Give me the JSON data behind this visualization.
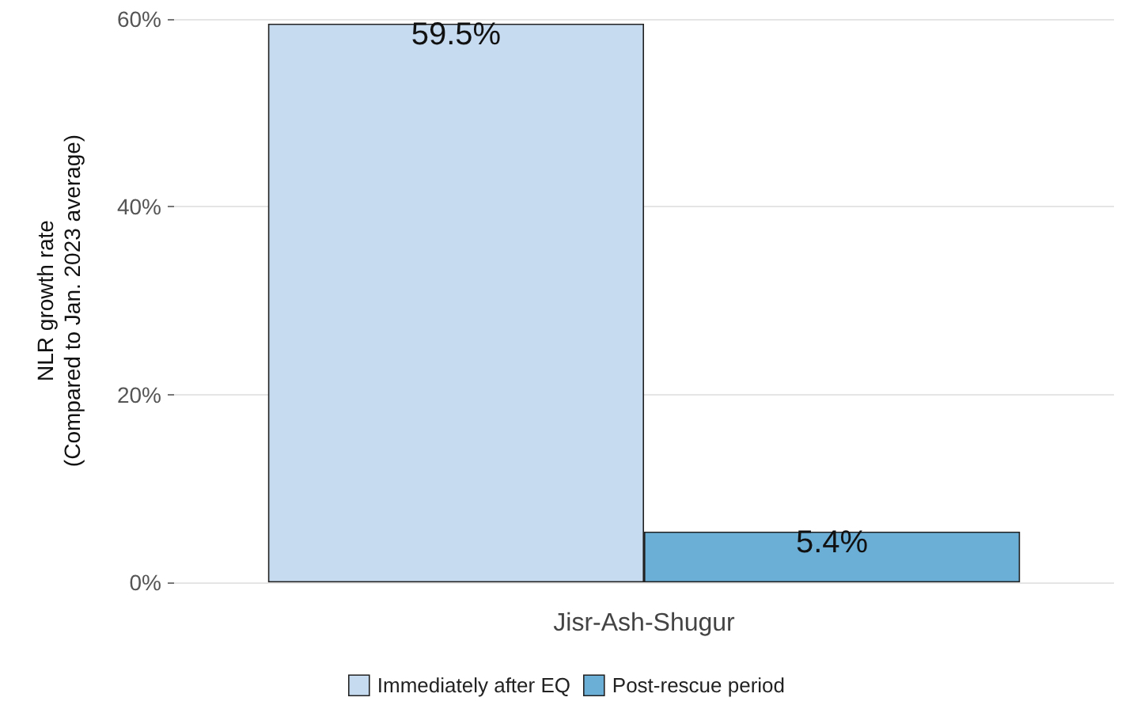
{
  "chart_data": {
    "type": "bar",
    "ylabel": "NLR growth rate\n(Compared to Jan. 2023 average)",
    "categories": [
      "Jisr-Ash-Shugur"
    ],
    "series": [
      {
        "name": "Immediately after EQ",
        "color": "#c6dbef",
        "values": [
          59.5
        ],
        "value_labels": [
          "59.5%"
        ]
      },
      {
        "name": "Post-rescue period",
        "color": "#6baed6",
        "values": [
          5.4
        ],
        "value_labels": [
          "5.4%"
        ]
      }
    ],
    "ylim": [
      0,
      60
    ],
    "yticks": [
      {
        "value": 0,
        "label": "0%"
      },
      {
        "value": 20,
        "label": "20%"
      },
      {
        "value": 40,
        "label": "40%"
      },
      {
        "value": 60,
        "label": "60%"
      }
    ],
    "grid": "y",
    "legend": "bottom"
  }
}
